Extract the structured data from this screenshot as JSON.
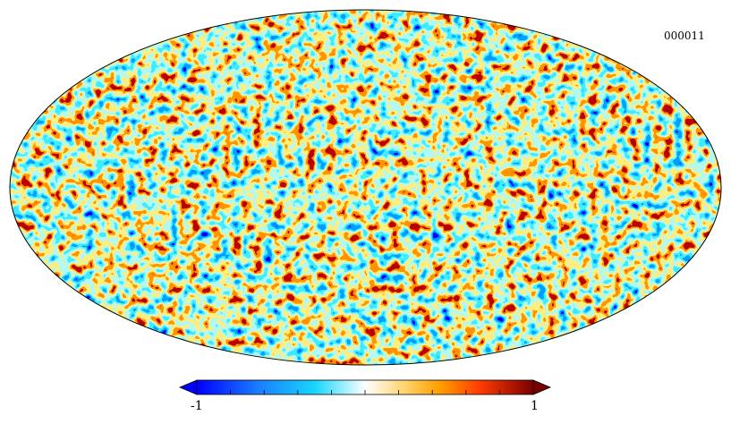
{
  "map": {
    "projection": "mollweide",
    "identifier": "000011",
    "colormap": [
      "#0000ff",
      "#1a7cff",
      "#17d6ff",
      "#ffffff",
      "#ffd36b",
      "#ffa000",
      "#ff3c00",
      "#7a0000"
    ]
  },
  "colorbar": {
    "min_label": "-1",
    "max_label": "1",
    "range": [
      -1,
      1
    ],
    "ticks": [
      -0.8,
      -0.6,
      -0.4,
      -0.2,
      0,
      0.2,
      0.4,
      0.6,
      0.8
    ]
  }
}
